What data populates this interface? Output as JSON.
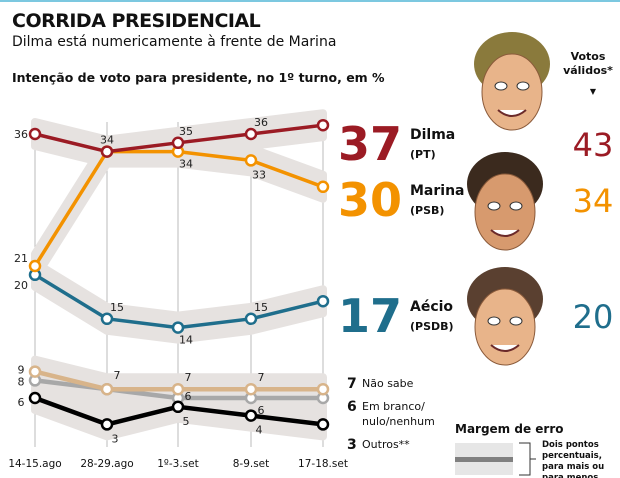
{
  "title": "CORRIDA PRESIDENCIAL",
  "subtitle": "Dilma está numericamente à frente de Marina",
  "chart_data": {
    "type": "line",
    "title": "Intenção de voto para presidente, no 1º turno, em %",
    "categories": [
      "14-15.ago",
      "28-29.ago",
      "1º-3.set",
      "8-9.set",
      "17-18.set"
    ],
    "ylim": [
      0,
      40
    ],
    "grid": "vertical",
    "series": [
      {
        "name": "Dilma",
        "party": "(PT)",
        "color": "#9b1b24",
        "values": [
          36,
          34,
          35,
          36,
          37
        ],
        "labels": [
          "36",
          "34",
          "35",
          "36",
          ""
        ],
        "valid_votes": "43"
      },
      {
        "name": "Marina",
        "party": "(PSB)",
        "color": "#f39200",
        "values": [
          21,
          34,
          34,
          33,
          30
        ],
        "labels": [
          "21",
          "",
          "34",
          "33",
          ""
        ],
        "valid_votes": "34"
      },
      {
        "name": "Aécio",
        "party": "(PSDB)",
        "color": "#1f6e8c",
        "values": [
          20,
          15,
          14,
          15,
          17
        ],
        "labels": [
          "20",
          "15",
          "14",
          "15",
          ""
        ],
        "valid_votes": "20"
      },
      {
        "name": "Não sabe",
        "color": "#d8b48a",
        "values": [
          9,
          7,
          7,
          7,
          7
        ],
        "labels": [
          "9",
          "7",
          "7",
          "7",
          ""
        ]
      },
      {
        "name": "Em branco/ nulo/nenhum",
        "color": "#a8a8a8",
        "values": [
          8,
          7,
          6,
          6,
          6
        ],
        "labels": [
          "8",
          "",
          "6",
          "6",
          ""
        ]
      },
      {
        "name": "Outros**",
        "color": "#000000",
        "values": [
          6,
          3,
          5,
          4,
          3
        ],
        "labels": [
          "6",
          "3",
          "5",
          "4",
          ""
        ]
      }
    ],
    "valid_votes_header": "Votos válidos*",
    "legend_minor": [
      {
        "value": "7",
        "label": "Não sabe"
      },
      {
        "value": "6",
        "label": "Em branco/",
        "label2": "nulo/nenhum"
      },
      {
        "value": "3",
        "label": "Outros**"
      }
    ],
    "margin_of_error": {
      "title": "Margem de erro",
      "note": [
        "Dois pontos",
        "percentuais,",
        "para mais ou",
        "para menos"
      ]
    }
  }
}
